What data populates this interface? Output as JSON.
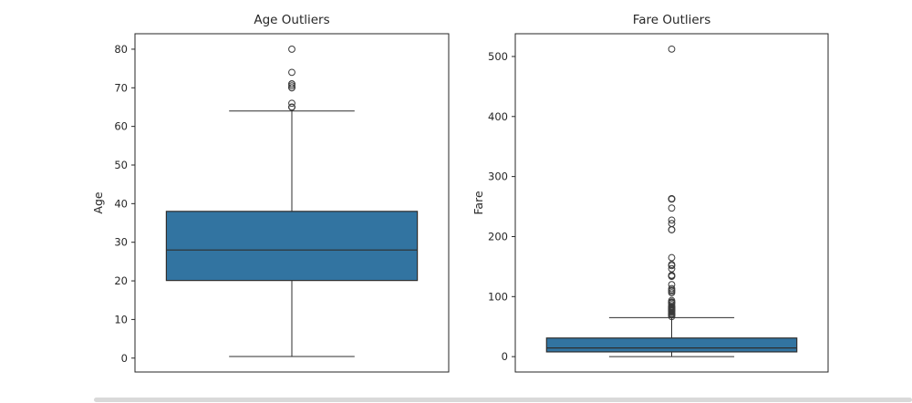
{
  "figure": {
    "background": "#ffffff",
    "num_subplots": 2
  },
  "chart_data": [
    {
      "type": "boxplot",
      "title": "Age Outliers",
      "ylabel": "Age",
      "xlabel": "",
      "yticks": [
        0,
        10,
        20,
        30,
        40,
        50,
        60,
        70,
        80
      ],
      "xticks": [],
      "ylim": [
        -3.6,
        84.0
      ],
      "grid": false,
      "legend": "none",
      "orientation": "vertical",
      "box_fill": "#3274a1",
      "edge_color": "#2e2e2e",
      "box": {
        "whisker_low": 0.42,
        "q1": 20.1,
        "median": 28.0,
        "q3": 38.0,
        "whisker_high": 64.0,
        "outliers": [
          65,
          65,
          65,
          66,
          70,
          70,
          70.5,
          71,
          71,
          74,
          80
        ]
      }
    },
    {
      "type": "boxplot",
      "title": "Fare Outliers",
      "ylabel": "Fare",
      "xlabel": "",
      "yticks": [
        0,
        100,
        200,
        300,
        400,
        500
      ],
      "xticks": [],
      "ylim": [
        -25.6,
        537.9
      ],
      "grid": false,
      "legend": "none",
      "orientation": "vertical",
      "box_fill": "#3274a1",
      "edge_color": "#2e2e2e",
      "box": {
        "whisker_low": 0.0,
        "q1": 7.9,
        "median": 14.45,
        "q3": 31.0,
        "whisker_high": 65.0,
        "outliers": [
          512.3,
          263,
          263,
          263,
          262.4,
          247.5,
          227.5,
          221.8,
          211.5,
          211.3,
          164.9,
          153.5,
          151.6,
          146.5,
          135.6,
          134.5,
          133.7,
          120,
          113.3,
          110.9,
          108.9,
          106.4,
          93.5,
          91.1,
          90,
          89.1,
          86.5,
          83.5,
          83.2,
          82.2,
          81.9,
          80,
          79.7,
          79.2,
          78.9,
          78.3,
          78,
          77.3,
          76.7,
          76.3,
          75.3,
          73.5,
          71.3,
          71,
          70.5,
          69.6,
          69.3,
          66.6
        ]
      }
    }
  ]
}
